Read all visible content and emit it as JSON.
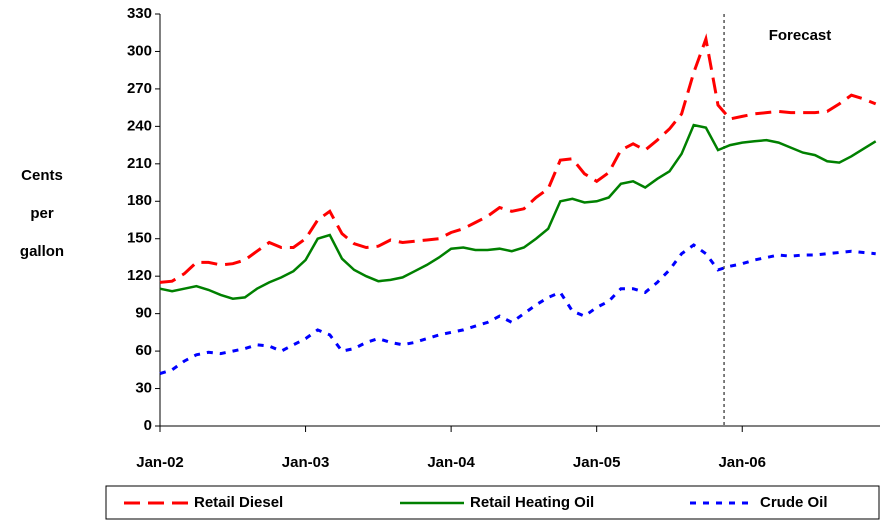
{
  "chart_data": {
    "type": "line",
    "y_label": [
      "Cents",
      "per",
      "gallon"
    ],
    "annotation": "Forecast",
    "categories": [
      "Jan-02",
      null,
      null,
      null,
      null,
      null,
      null,
      null,
      null,
      null,
      null,
      null,
      "Jan-03",
      null,
      null,
      null,
      null,
      null,
      null,
      null,
      null,
      null,
      null,
      null,
      "Jan-04",
      null,
      null,
      null,
      null,
      null,
      null,
      null,
      null,
      null,
      null,
      null,
      "Jan-05",
      null,
      null,
      null,
      null,
      null,
      null,
      null,
      null,
      null,
      null,
      null,
      "Jan-06",
      null,
      null,
      null,
      null,
      null,
      null,
      null,
      null,
      null,
      null,
      null
    ],
    "series": [
      {
        "name": "Retail Diesel",
        "color": "#ff0000",
        "style": "dashed",
        "values": [
          115,
          116,
          122,
          131,
          131,
          129,
          130,
          133,
          140,
          147,
          143,
          143,
          150,
          165,
          172,
          154,
          146,
          143,
          144,
          149,
          147,
          148,
          149,
          150,
          155,
          158,
          163,
          168,
          175,
          172,
          174,
          183,
          190,
          213,
          214,
          202,
          196,
          203,
          221,
          226,
          221,
          229,
          238,
          250,
          283,
          310,
          257,
          246,
          248,
          250,
          251,
          252,
          251,
          251,
          251,
          252,
          258,
          265,
          262,
          258
        ]
      },
      {
        "name": "Retail Heating Oil",
        "color": "#008000",
        "style": "solid",
        "values": [
          110,
          108,
          110,
          112,
          109,
          105,
          102,
          103,
          110,
          115,
          119,
          124,
          133,
          150,
          153,
          134,
          125,
          120,
          116,
          117,
          119,
          124,
          129,
          135,
          142,
          143,
          141,
          141,
          142,
          140,
          143,
          150,
          158,
          180,
          182,
          179,
          180,
          183,
          194,
          196,
          191,
          198,
          204,
          218,
          241,
          239,
          221,
          225,
          227,
          228,
          229,
          227,
          223,
          219,
          217,
          212,
          211,
          216,
          222,
          228
        ]
      },
      {
        "name": "Crude Oil",
        "color": "#0000ff",
        "style": "dotted",
        "values": [
          42,
          45,
          52,
          57,
          59,
          58,
          60,
          62,
          65,
          64,
          60,
          65,
          70,
          77,
          73,
          60,
          62,
          67,
          70,
          67,
          65,
          67,
          70,
          73,
          75,
          77,
          80,
          83,
          88,
          83,
          90,
          97,
          103,
          107,
          92,
          88,
          95,
          100,
          110,
          110,
          107,
          115,
          125,
          138,
          145,
          138,
          125,
          128,
          130,
          133,
          135,
          137,
          136,
          137,
          137,
          138,
          139,
          140,
          139,
          138
        ]
      }
    ],
    "ylim": [
      0,
      330
    ],
    "yticks": [
      0,
      30,
      60,
      90,
      120,
      150,
      180,
      210,
      240,
      270,
      300,
      330
    ],
    "legend": "bottom"
  }
}
